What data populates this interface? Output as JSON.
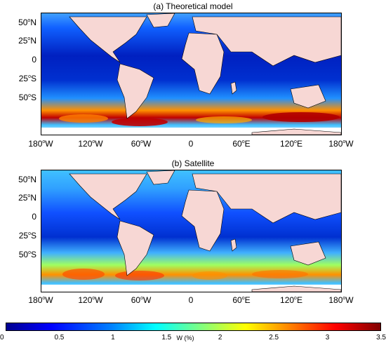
{
  "panels": [
    {
      "title": "(a) Theoretical model"
    },
    {
      "title": "(b) Satellite"
    }
  ],
  "lat_labels": [
    {
      "deg": "50",
      "hem": "N"
    },
    {
      "deg": "25",
      "hem": "N"
    },
    {
      "deg": "0",
      "hem": ""
    },
    {
      "deg": "25",
      "hem": "S"
    },
    {
      "deg": "50",
      "hem": "S"
    }
  ],
  "lon_labels": [
    {
      "deg": "180",
      "hem": "W"
    },
    {
      "deg": "120",
      "hem": "W"
    },
    {
      "deg": "60",
      "hem": "W"
    },
    {
      "deg": "0",
      "hem": ""
    },
    {
      "deg": "60",
      "hem": "E"
    },
    {
      "deg": "120",
      "hem": "E"
    },
    {
      "deg": "180",
      "hem": "W"
    }
  ],
  "colorbar": {
    "ticks": [
      "0",
      "0.5",
      "1",
      "1.5",
      "2",
      "2.5",
      "3",
      "3.5"
    ],
    "unit_label": "W (%)",
    "min": 0,
    "max": 3.5,
    "colormap": "jet"
  },
  "colors": {
    "land": "#f7d7d4",
    "ocean_low": "#00008f",
    "ocean_mid": "#1060ff",
    "ocean_high": "#ffcc00",
    "ocean_peak": "#c00000"
  }
}
